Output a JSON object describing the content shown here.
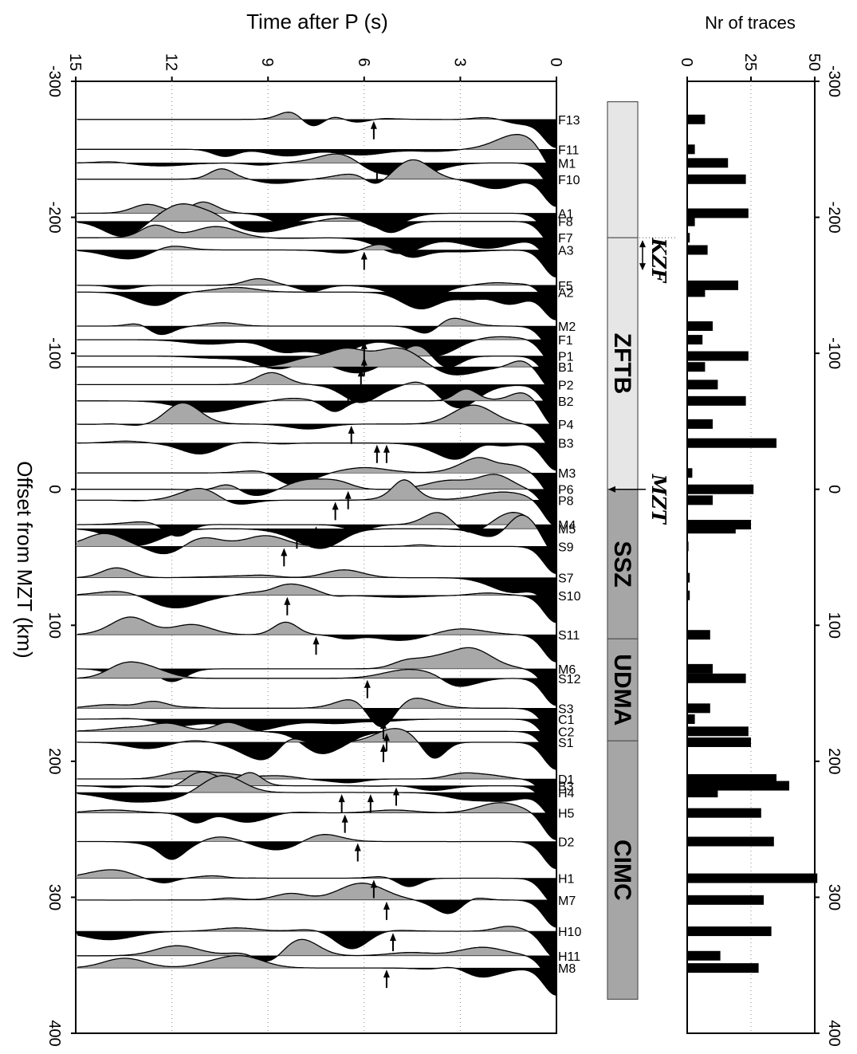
{
  "chart_data": [
    {
      "type": "line",
      "panel": "receiver-functions",
      "title": "",
      "xlabel": "Offset from MZT (km)",
      "ylabel": "Time after P (s)",
      "xlim": [
        -300,
        400
      ],
      "ylim": [
        0,
        15
      ],
      "x_ticks": [
        -300,
        -200,
        -100,
        0,
        100,
        200,
        300,
        400
      ],
      "y_ticks": [
        0,
        3,
        6,
        9,
        12,
        15
      ],
      "grid": "dotted",
      "traces": [
        {
          "name": "F13",
          "offset": -272
        },
        {
          "name": "F11",
          "offset": -250
        },
        {
          "name": "M1",
          "offset": -240
        },
        {
          "name": "F10",
          "offset": -228
        },
        {
          "name": "A1",
          "offset": -203
        },
        {
          "name": "F8",
          "offset": -197
        },
        {
          "name": "F7",
          "offset": -185
        },
        {
          "name": "A3",
          "offset": -176
        },
        {
          "name": "F5",
          "offset": -150
        },
        {
          "name": "A2",
          "offset": -145
        },
        {
          "name": "M2",
          "offset": -120
        },
        {
          "name": "F1",
          "offset": -110
        },
        {
          "name": "P1",
          "offset": -98
        },
        {
          "name": "B1",
          "offset": -90
        },
        {
          "name": "P2",
          "offset": -77
        },
        {
          "name": "B2",
          "offset": -65
        },
        {
          "name": "P4",
          "offset": -48
        },
        {
          "name": "B3",
          "offset": -34
        },
        {
          "name": "M3",
          "offset": -12
        },
        {
          "name": "P6",
          "offset": 0
        },
        {
          "name": "P8",
          "offset": 8
        },
        {
          "name": "M4",
          "offset": 26
        },
        {
          "name": "M5",
          "offset": 29
        },
        {
          "name": "S9",
          "offset": 42
        },
        {
          "name": "S7",
          "offset": 65
        },
        {
          "name": "S10",
          "offset": 78
        },
        {
          "name": "S11",
          "offset": 107
        },
        {
          "name": "M6",
          "offset": 132
        },
        {
          "name": "S12",
          "offset": 139
        },
        {
          "name": "S3",
          "offset": 161
        },
        {
          "name": "C1",
          "offset": 169
        },
        {
          "name": "C2",
          "offset": 178
        },
        {
          "name": "S1",
          "offset": 186
        },
        {
          "name": "D1",
          "offset": 213
        },
        {
          "name": "B3",
          "offset": 218
        },
        {
          "name": "H4",
          "offset": 223
        },
        {
          "name": "H5",
          "offset": 238
        },
        {
          "name": "D2",
          "offset": 259
        },
        {
          "name": "H1",
          "offset": 286
        },
        {
          "name": "M7",
          "offset": 302
        },
        {
          "name": "H10",
          "offset": 325
        },
        {
          "name": "H11",
          "offset": 343
        },
        {
          "name": "M8",
          "offset": 352
        }
      ],
      "arrows": [
        {
          "offset": -272,
          "time": 5.7
        },
        {
          "offset": -240,
          "time": 5.6
        },
        {
          "offset": -176,
          "time": 6.0
        },
        {
          "offset": -110,
          "time": 6.0
        },
        {
          "offset": -98,
          "time": 6.0
        },
        {
          "offset": -90,
          "time": 6.1
        },
        {
          "offset": -77,
          "time": 6.5
        },
        {
          "offset": -48,
          "time": 6.4
        },
        {
          "offset": -34,
          "time": 5.6
        },
        {
          "offset": -34,
          "time": 5.3
        },
        {
          "offset": 0,
          "time": 6.5
        },
        {
          "offset": 8,
          "time": 6.9
        },
        {
          "offset": 26,
          "time": 7.5
        },
        {
          "offset": 29,
          "time": 8.1
        },
        {
          "offset": 42,
          "time": 8.5
        },
        {
          "offset": 78,
          "time": 8.4
        },
        {
          "offset": 107,
          "time": 7.5
        },
        {
          "offset": 139,
          "time": 5.9
        },
        {
          "offset": 169,
          "time": 5.4
        },
        {
          "offset": 178,
          "time": 5.3
        },
        {
          "offset": 186,
          "time": 5.4
        },
        {
          "offset": 218,
          "time": 5.0
        },
        {
          "offset": 223,
          "time": 5.8
        },
        {
          "offset": 223,
          "time": 6.7
        },
        {
          "offset": 238,
          "time": 6.6
        },
        {
          "offset": 259,
          "time": 6.2
        },
        {
          "offset": 286,
          "time": 5.7
        },
        {
          "offset": 302,
          "time": 5.3
        },
        {
          "offset": 325,
          "time": 5.1
        },
        {
          "offset": 352,
          "time": 5.3
        }
      ]
    },
    {
      "type": "bar",
      "panel": "trace-count",
      "title": "",
      "ylabel": "Nr of traces",
      "xlim": [
        -300,
        400
      ],
      "ylim": [
        0,
        50
      ],
      "y_ticks": [
        0,
        25,
        50
      ],
      "x_ticks": [
        -300,
        -200,
        -100,
        0,
        100,
        200,
        300,
        400
      ],
      "grid": "dotted",
      "offsets": [
        -272,
        -250,
        -240,
        -228,
        -203,
        -197,
        -185,
        -176,
        -150,
        -145,
        -120,
        -110,
        -98,
        -90,
        -77,
        -65,
        -48,
        -34,
        -12,
        0,
        8,
        26,
        29,
        42,
        65,
        78,
        107,
        132,
        139,
        161,
        169,
        178,
        186,
        213,
        218,
        223,
        238,
        259,
        286,
        302,
        325,
        343,
        352
      ],
      "values": [
        7,
        3,
        16,
        23,
        24,
        3,
        1,
        8,
        20,
        7,
        10,
        6,
        24,
        7,
        12,
        23,
        10,
        35,
        2,
        26,
        10,
        25,
        19,
        0.5,
        1,
        1,
        9,
        10,
        23,
        9,
        3,
        24,
        25,
        35,
        40,
        12,
        29,
        34,
        51,
        30,
        33,
        13,
        28
      ]
    }
  ],
  "zones": [
    {
      "label": "",
      "from": -285,
      "to": -185,
      "color": "#e6e6e6"
    },
    {
      "label": "ZFTB",
      "from": -185,
      "to": 0,
      "color": "#e6e6e6"
    },
    {
      "label": "SSZ",
      "from": 0,
      "to": 110,
      "color": "#a6a6a6"
    },
    {
      "label": "UDMA",
      "from": 110,
      "to": 185,
      "color": "#a6a6a6"
    },
    {
      "label": "CIMC",
      "from": 185,
      "to": 375,
      "color": "#a6a6a6"
    }
  ],
  "faults": [
    {
      "label": "KZF",
      "offset": -185
    },
    {
      "label": "MZT",
      "offset": 0
    }
  ],
  "colors": {
    "positive": "#000000",
    "negative": "#a8a8a8",
    "axis": "#000000",
    "grid": "#888888"
  }
}
